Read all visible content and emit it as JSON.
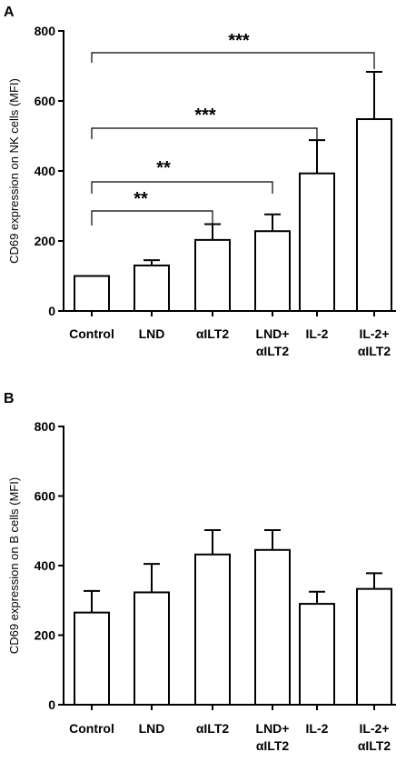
{
  "chart_data": [
    {
      "type": "bar",
      "panel": "A",
      "ylabel": "CD69 expression on NK cells (MFI)",
      "ylim": [
        0,
        800
      ],
      "yticks": [
        0,
        200,
        400,
        600,
        800
      ],
      "categories": [
        [
          "Control"
        ],
        [
          "LND"
        ],
        [
          "αILT2"
        ],
        [
          "LND+",
          "αILT2"
        ],
        [
          "IL-2"
        ],
        [
          "IL-2+",
          "αILT2"
        ]
      ],
      "values": [
        100,
        130,
        203,
        228,
        393,
        548
      ],
      "errors": [
        0,
        15,
        45,
        48,
        95,
        135
      ],
      "significance": [
        {
          "from": 0,
          "to": 2,
          "label": "**"
        },
        {
          "from": 0,
          "to": 3,
          "label": "**"
        },
        {
          "from": 0,
          "to": 4,
          "label": "***"
        },
        {
          "from": 0,
          "to": 5,
          "label": "***"
        }
      ]
    },
    {
      "type": "bar",
      "panel": "B",
      "ylabel": "CD69 expression on B cells (MFI)",
      "ylim": [
        0,
        800
      ],
      "yticks": [
        0,
        200,
        400,
        600,
        800
      ],
      "categories": [
        [
          "Control"
        ],
        [
          "LND"
        ],
        [
          "αILT2"
        ],
        [
          "LND+",
          "αILT2"
        ],
        [
          "IL-2"
        ],
        [
          "IL-2+",
          "αILT2"
        ]
      ],
      "values": [
        265,
        323,
        432,
        445,
        290,
        333
      ],
      "errors": [
        62,
        82,
        70,
        57,
        35,
        45
      ],
      "significance": []
    }
  ]
}
